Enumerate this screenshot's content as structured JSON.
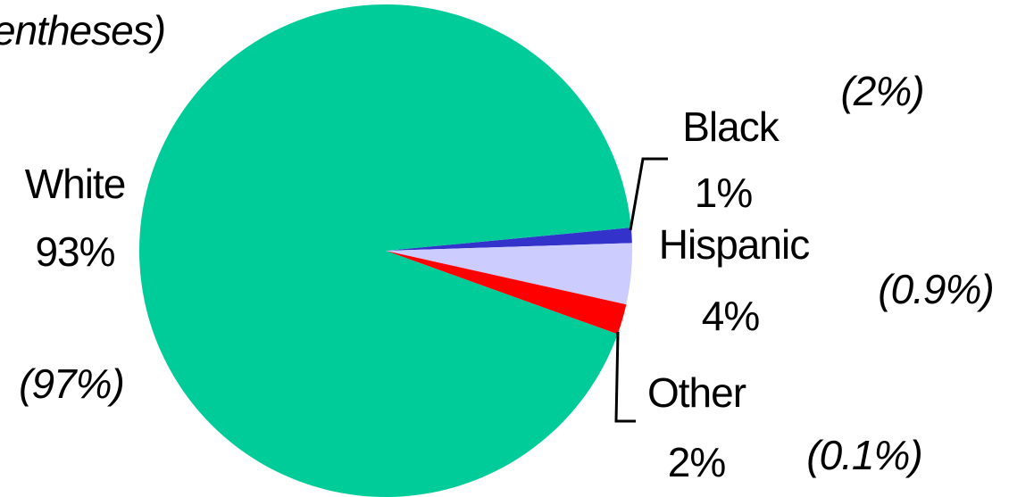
{
  "chart_data": {
    "type": "pie",
    "title": "",
    "title_fragment": "entheses)",
    "legend": "none",
    "slices": [
      {
        "name": "White",
        "value": 93,
        "value_label": "93%",
        "compare_label": "(97%)",
        "color": "#00CC99"
      },
      {
        "name": "Black",
        "value": 1,
        "value_label": "1%",
        "compare_label": "(2%)",
        "color": "#3333CC"
      },
      {
        "name": "Hispanic",
        "value": 4,
        "value_label": "4%",
        "compare_label": "(0.9%)",
        "color": "#CCCCFF"
      },
      {
        "name": "Other",
        "value": 2,
        "value_label": "2%",
        "compare_label": "(0.1%)",
        "color": "#FF0000"
      }
    ]
  }
}
